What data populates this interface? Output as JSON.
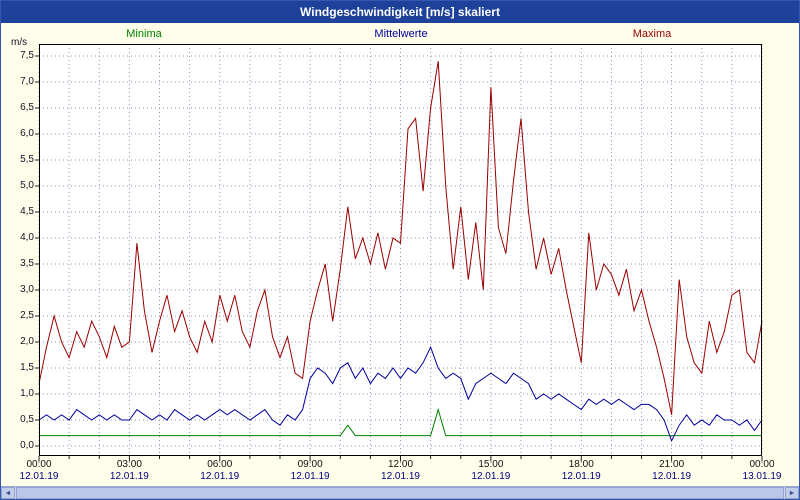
{
  "window": {
    "title": "Windgeschwindigkeit [m/s] skaliert"
  },
  "colors": {
    "titlebar": "#1e4199",
    "background": "#fffeea",
    "plot_background": "#ffffff",
    "grid": "#9096b4",
    "minima": "#008000",
    "mittelwerte": "#000099",
    "maxima": "#990000",
    "date_label": "#000080"
  },
  "scrollbar": {
    "left_arrow": "◄",
    "right_arrow": "►"
  },
  "chart_data": {
    "type": "line",
    "title": "Windgeschwindigkeit [m/s] skaliert",
    "xlabel": "",
    "ylabel": "m/s",
    "ylim": [
      0,
      7.5
    ],
    "y_tick_step": 0.5,
    "grid": true,
    "legend_position": "top",
    "x_hours_span": 24,
    "points_per_hour": 4,
    "y_tick_labels": [
      "7,5",
      "7,0",
      "6,5",
      "6,0",
      "5,5",
      "5,0",
      "4,5",
      "4,0",
      "3,5",
      "3,0",
      "2,5",
      "2,0",
      "1,5",
      "1,0",
      "0,5",
      "0,0"
    ],
    "x_tick_labels": [
      {
        "time": "00:00",
        "date": "12.01.19"
      },
      {
        "time": "03:00",
        "date": "12.01.19"
      },
      {
        "time": "06:00",
        "date": "12.01.19"
      },
      {
        "time": "09:00",
        "date": "12.01.19"
      },
      {
        "time": "12:00",
        "date": "12.01.19"
      },
      {
        "time": "15:00",
        "date": "12.01.19"
      },
      {
        "time": "18:00",
        "date": "12.01.19"
      },
      {
        "time": "21:00",
        "date": "12.01.19"
      },
      {
        "time": "00:00",
        "date": "13.01.19"
      }
    ],
    "series": [
      {
        "name": "Minima",
        "color": "#008000",
        "values": [
          0.2,
          0.2,
          0.2,
          0.2,
          0.2,
          0.2,
          0.2,
          0.2,
          0.2,
          0.2,
          0.2,
          0.2,
          0.2,
          0.2,
          0.2,
          0.2,
          0.2,
          0.2,
          0.2,
          0.2,
          0.2,
          0.2,
          0.2,
          0.2,
          0.2,
          0.2,
          0.2,
          0.2,
          0.2,
          0.2,
          0.2,
          0.2,
          0.2,
          0.2,
          0.2,
          0.2,
          0.2,
          0.2,
          0.2,
          0.2,
          0.2,
          0.4,
          0.2,
          0.2,
          0.2,
          0.2,
          0.2,
          0.2,
          0.2,
          0.2,
          0.2,
          0.2,
          0.2,
          0.7,
          0.2,
          0.2,
          0.2,
          0.2,
          0.2,
          0.2,
          0.2,
          0.2,
          0.2,
          0.2,
          0.2,
          0.2,
          0.2,
          0.2,
          0.2,
          0.2,
          0.2,
          0.2,
          0.2,
          0.2,
          0.2,
          0.2,
          0.2,
          0.2,
          0.2,
          0.2,
          0.2,
          0.2,
          0.2,
          0.2,
          0.2,
          0.2,
          0.2,
          0.2,
          0.2,
          0.2,
          0.2,
          0.2,
          0.2,
          0.2,
          0.2,
          0.2,
          0.2
        ]
      },
      {
        "name": "Mittelwerte",
        "color": "#000099",
        "values": [
          0.5,
          0.6,
          0.5,
          0.6,
          0.5,
          0.7,
          0.6,
          0.5,
          0.6,
          0.5,
          0.6,
          0.5,
          0.5,
          0.7,
          0.6,
          0.5,
          0.6,
          0.5,
          0.7,
          0.6,
          0.5,
          0.6,
          0.5,
          0.6,
          0.7,
          0.6,
          0.7,
          0.6,
          0.5,
          0.6,
          0.7,
          0.5,
          0.4,
          0.6,
          0.5,
          0.7,
          1.3,
          1.5,
          1.4,
          1.2,
          1.5,
          1.6,
          1.3,
          1.5,
          1.2,
          1.4,
          1.3,
          1.5,
          1.3,
          1.5,
          1.4,
          1.6,
          1.9,
          1.5,
          1.3,
          1.4,
          1.3,
          0.9,
          1.2,
          1.3,
          1.4,
          1.3,
          1.2,
          1.4,
          1.3,
          1.2,
          0.9,
          1.0,
          0.9,
          1.0,
          0.9,
          0.8,
          0.7,
          0.9,
          0.8,
          0.9,
          0.8,
          0.9,
          0.8,
          0.7,
          0.8,
          0.8,
          0.7,
          0.5,
          0.1,
          0.4,
          0.6,
          0.4,
          0.5,
          0.4,
          0.6,
          0.5,
          0.5,
          0.4,
          0.5,
          0.3,
          0.5
        ]
      },
      {
        "name": "Maxima",
        "color": "#990000",
        "values": [
          1.2,
          1.9,
          2.5,
          2.0,
          1.7,
          2.2,
          1.9,
          2.4,
          2.1,
          1.7,
          2.3,
          1.9,
          2.0,
          3.9,
          2.6,
          1.8,
          2.4,
          2.9,
          2.2,
          2.6,
          2.1,
          1.8,
          2.4,
          2.0,
          2.9,
          2.4,
          2.9,
          2.2,
          1.9,
          2.6,
          3.0,
          2.1,
          1.7,
          2.1,
          1.4,
          1.3,
          2.4,
          3.0,
          3.5,
          2.4,
          3.4,
          4.6,
          3.6,
          4.0,
          3.5,
          4.1,
          3.4,
          4.0,
          3.9,
          6.1,
          6.3,
          4.9,
          6.5,
          7.4,
          5.0,
          3.4,
          4.6,
          3.2,
          4.3,
          3.0,
          6.9,
          4.2,
          3.7,
          5.1,
          6.3,
          4.5,
          3.4,
          4.0,
          3.3,
          3.8,
          3.0,
          2.3,
          1.6,
          4.1,
          3.0,
          3.5,
          3.3,
          2.9,
          3.4,
          2.6,
          3.0,
          2.4,
          1.9,
          1.3,
          0.6,
          3.2,
          2.1,
          1.6,
          1.4,
          2.4,
          1.8,
          2.2,
          2.9,
          3.0,
          1.8,
          1.6,
          2.4
        ]
      }
    ]
  }
}
